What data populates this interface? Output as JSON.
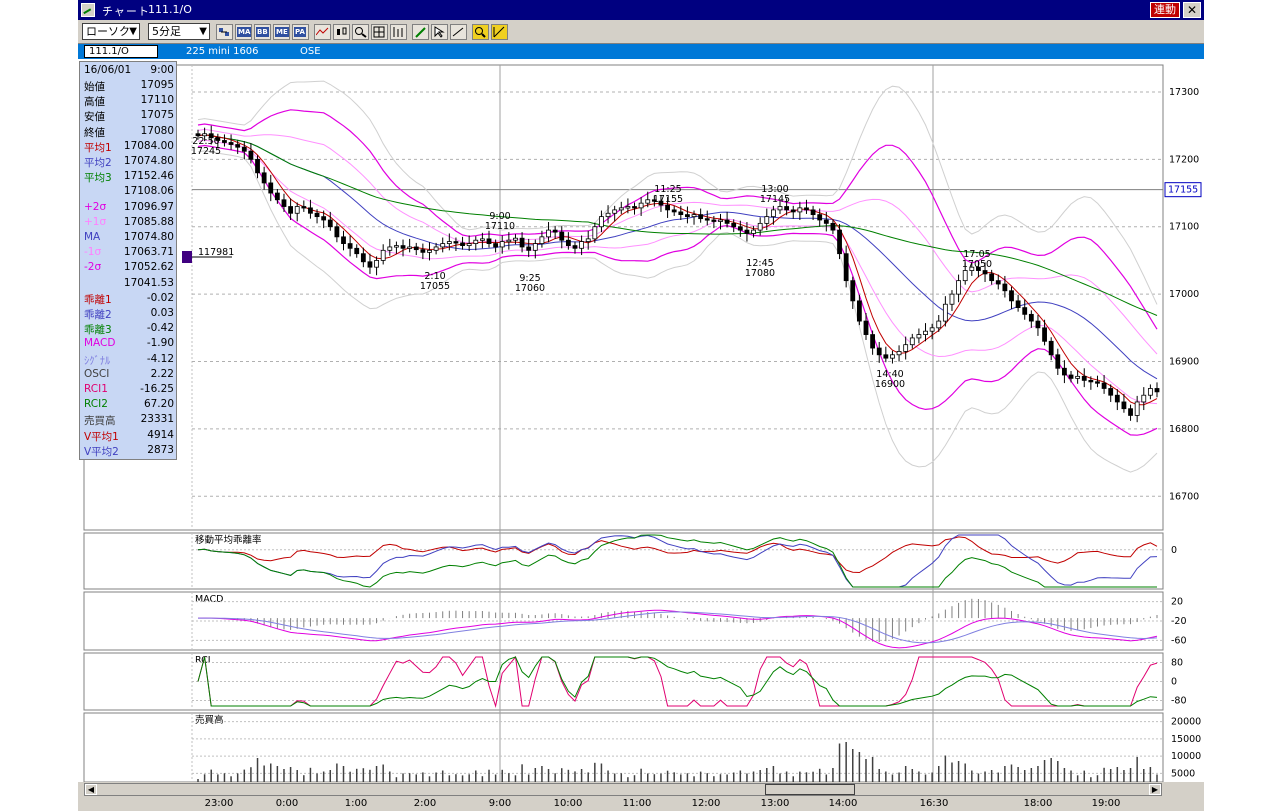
{
  "window": {
    "title": "チャート",
    "symbol": "111.1/O",
    "link_button": "連動",
    "close_icon": "close-icon"
  },
  "toolbar": {
    "chart_type": "ローソク",
    "interval": "5分足",
    "buttons": [
      "MA",
      "BB",
      "ME",
      "PA"
    ]
  },
  "info_bar": {
    "symbol": "111.1/O",
    "contract": "225 mini 1606",
    "exchange": "OSE"
  },
  "data_panel": {
    "date": "16/06/01",
    "time": "9:00",
    "rows": [
      {
        "label": "始値",
        "value": "17095",
        "color": "#000000"
      },
      {
        "label": "高値",
        "value": "17110",
        "color": "#000000"
      },
      {
        "label": "安値",
        "value": "17075",
        "color": "#000000"
      },
      {
        "label": "終値",
        "value": "17080",
        "color": "#000000"
      },
      {
        "label": "平均1",
        "value": "17084.00",
        "color": "#c00000"
      },
      {
        "label": "平均2",
        "value": "17074.80",
        "color": "#4040c0"
      },
      {
        "label": "平均3",
        "value": "17152.46",
        "color": "#008000"
      },
      {
        "label": "",
        "value": "17108.06",
        "color": "#000000"
      },
      {
        "label": "+2σ",
        "value": "17096.97",
        "color": "#e000e0"
      },
      {
        "label": "+1σ",
        "value": "17085.88",
        "color": "#ff80ff"
      },
      {
        "label": "MA",
        "value": "17074.80",
        "color": "#4040c0"
      },
      {
        "label": "-1σ",
        "value": "17063.71",
        "color": "#ff80ff"
      },
      {
        "label": "-2σ",
        "value": "17052.62",
        "color": "#e000e0"
      },
      {
        "label": "",
        "value": "17041.53",
        "color": "#000000"
      },
      {
        "label": "乖離1",
        "value": "-0.02",
        "color": "#c00000"
      },
      {
        "label": "乖離2",
        "value": "0.03",
        "color": "#4040c0"
      },
      {
        "label": "乖離3",
        "value": "-0.42",
        "color": "#008000"
      },
      {
        "label": "MACD",
        "value": "-1.90",
        "color": "#e000e0"
      },
      {
        "label": "ｼｸﾞﾅﾙ",
        "value": "-4.12",
        "color": "#8080e0"
      },
      {
        "label": "OSCI",
        "value": "2.22",
        "color": "#404040"
      },
      {
        "label": "RCI1",
        "value": "-16.25",
        "color": "#e00070"
      },
      {
        "label": "RCI2",
        "value": "67.20",
        "color": "#008000"
      },
      {
        "label": "売買高",
        "value": "23331",
        "color": "#404040"
      },
      {
        "label": "V平均1",
        "value": "4914",
        "color": "#c00000"
      },
      {
        "label": "V平均2",
        "value": "2873",
        "color": "#4040c0"
      }
    ]
  },
  "chart_data": {
    "type": "candlestick",
    "x_ticks": [
      "23:00",
      "0:00",
      "1:00",
      "2:00",
      "9:00",
      "10:00",
      "11:00",
      "12:00",
      "13:00",
      "14:00",
      "16:30",
      "18:00",
      "19:00"
    ],
    "price_axis": {
      "ticks": [
        17300,
        17200,
        17100,
        17000,
        16900,
        16800,
        16700
      ],
      "current": "17155"
    },
    "volume_marker": "117981",
    "annotations": [
      {
        "time": "22:50",
        "price": "17245"
      },
      {
        "time": "9:00",
        "price": "17110"
      },
      {
        "time": "2:10",
        "price": "17055"
      },
      {
        "time": "9:25",
        "price": "17060"
      },
      {
        "time": "11:25",
        "price": "17155"
      },
      {
        "time": "13:00",
        "price": "17145"
      },
      {
        "time": "12:45",
        "price": "17080"
      },
      {
        "time": "17:05",
        "price": "17050"
      },
      {
        "time": "14:40",
        "price": "16900"
      }
    ],
    "close_path": [
      17235,
      17238,
      17232,
      17228,
      17225,
      17222,
      17218,
      17212,
      17200,
      17180,
      17165,
      17150,
      17140,
      17130,
      17120,
      17130,
      17128,
      17120,
      17115,
      17110,
      17100,
      17085,
      17075,
      17068,
      17060,
      17048,
      17040,
      17050,
      17065,
      17070,
      17072,
      17068,
      17070,
      17066,
      17062,
      17065,
      17070,
      17075,
      17078,
      17076,
      17072,
      17075,
      17080,
      17082,
      17075,
      17070,
      17078,
      17080,
      17083,
      17070,
      17065,
      17075,
      17085,
      17095,
      17092,
      17080,
      17072,
      17068,
      17078,
      17082,
      17100,
      17115,
      17120,
      17125,
      17128,
      17130,
      17128,
      17135,
      17140,
      17138,
      17132,
      17125,
      17122,
      17118,
      17115,
      17118,
      17112,
      17110,
      17108,
      17110,
      17105,
      17100,
      17095,
      17090,
      17095,
      17105,
      17115,
      17125,
      17130,
      17125,
      17122,
      17128,
      17125,
      17118,
      17110,
      17105,
      17095,
      17060,
      17020,
      16990,
      16960,
      16940,
      16920,
      16910,
      16905,
      16910,
      16915,
      16925,
      16935,
      16940,
      16945,
      16950,
      16960,
      16985,
      17000,
      17020,
      17035,
      17040,
      17035,
      17030,
      17020,
      17015,
      17005,
      16990,
      16980,
      16970,
      16960,
      16950,
      16930,
      16910,
      16890,
      16880,
      16875,
      16878,
      16872,
      16870,
      16868,
      16860,
      16850,
      16840,
      16830,
      16820,
      16840,
      16850,
      16860,
      16855
    ],
    "panels": [
      {
        "title": "移動平均乖離率",
        "ticks": [
          "0"
        ]
      },
      {
        "title": "MACD",
        "ticks": [
          "20",
          "-20",
          "-60"
        ]
      },
      {
        "title": "RCI",
        "ticks": [
          "80",
          "0",
          "-80"
        ]
      },
      {
        "title": "売買高",
        "ticks": [
          "20000",
          "15000",
          "10000",
          "5000"
        ]
      }
    ]
  }
}
